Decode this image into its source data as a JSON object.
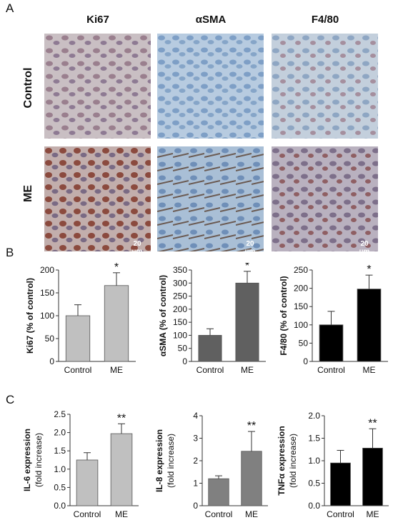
{
  "panels": {
    "a": "A",
    "b": "B",
    "c": "C"
  },
  "micrographs": {
    "columns": [
      "Ki67",
      "αSMA",
      "F4/80"
    ],
    "rows": [
      "Control",
      "ME"
    ],
    "scale_bar": "20 µm"
  },
  "chart_data": [
    {
      "type": "bar",
      "categories": [
        "Control",
        "ME"
      ],
      "values": [
        100,
        166
      ],
      "errors": [
        24,
        28
      ],
      "ylabel": "Ki67 (% of control)",
      "ylim": [
        0,
        200
      ],
      "yticks": [
        0,
        50,
        100,
        150,
        200
      ],
      "ytick_labels": [
        "0",
        "50",
        "100",
        "150",
        "200"
      ],
      "annotations": [
        "",
        "*"
      ],
      "colors": [
        "#c0c0c0",
        "#c0c0c0"
      ]
    },
    {
      "type": "bar",
      "categories": [
        "Control",
        "ME"
      ],
      "values": [
        100,
        300
      ],
      "errors": [
        25,
        45
      ],
      "ylabel": "αSMA (% of control)",
      "ylim": [
        0,
        350
      ],
      "yticks": [
        0,
        50,
        100,
        150,
        200,
        250,
        300,
        350
      ],
      "ytick_labels": [
        "0",
        "50",
        "100",
        "150",
        "200",
        "250",
        "300",
        "350"
      ],
      "annotations": [
        "",
        "*"
      ],
      "colors": [
        "#606060",
        "#606060"
      ]
    },
    {
      "type": "bar",
      "categories": [
        "Control",
        "ME"
      ],
      "values": [
        100,
        198
      ],
      "errors": [
        37,
        38
      ],
      "ylabel": "F4/80 (% of control)",
      "ylim": [
        0,
        250
      ],
      "yticks": [
        0,
        50,
        100,
        150,
        200,
        250
      ],
      "ytick_labels": [
        "0",
        "50",
        "100",
        "150",
        "200",
        "250"
      ],
      "annotations": [
        "",
        "*"
      ],
      "colors": [
        "#000000",
        "#000000"
      ]
    },
    {
      "type": "bar",
      "categories": [
        "Control",
        "ME"
      ],
      "values": [
        1.25,
        1.97
      ],
      "errors": [
        0.2,
        0.27
      ],
      "ylabel": "IL-6 expression (fold increase)",
      "ylabel_lines": [
        "IL-6 expression",
        "(fold increase)"
      ],
      "ylim": [
        0,
        2.5
      ],
      "yticks": [
        0,
        0.5,
        1,
        1.5,
        2,
        2.5
      ],
      "ytick_labels": [
        "0.0",
        "0.5",
        "1.0",
        "1.5",
        "2.0",
        "2.5"
      ],
      "annotations": [
        "",
        "**"
      ],
      "colors": [
        "#c0c0c0",
        "#c0c0c0"
      ]
    },
    {
      "type": "bar",
      "categories": [
        "Control",
        "ME"
      ],
      "values": [
        1.2,
        2.42
      ],
      "errors": [
        0.13,
        0.88
      ],
      "ylabel": "IL-8 expression (fold increase)",
      "ylabel_lines": [
        "IL-8 expression",
        "(fold increase)"
      ],
      "ylim": [
        0,
        4
      ],
      "yticks": [
        0,
        1,
        2,
        3,
        4
      ],
      "ytick_labels": [
        "0",
        "1",
        "2",
        "3",
        "4"
      ],
      "annotations": [
        "",
        "**"
      ],
      "colors": [
        "#808080",
        "#808080"
      ]
    },
    {
      "type": "bar",
      "categories": [
        "Control",
        "ME"
      ],
      "values": [
        0.95,
        1.28
      ],
      "errors": [
        0.28,
        0.43
      ],
      "ylabel": "TNFα expression (fold increase)",
      "ylabel_lines": [
        "TNFα expression",
        "(fold increase)"
      ],
      "ylim": [
        0,
        2
      ],
      "yticks": [
        0,
        0.5,
        1,
        1.5,
        2
      ],
      "ytick_labels": [
        "0.0",
        "0.5",
        "1.0",
        "1.5",
        "2.0"
      ],
      "annotations": [
        "",
        "**"
      ],
      "colors": [
        "#000000",
        "#000000"
      ]
    }
  ]
}
